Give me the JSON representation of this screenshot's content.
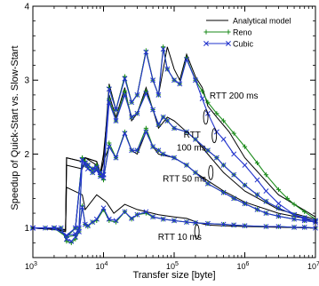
{
  "chart_data": {
    "type": "line",
    "xlabel": "Transfer size [byte]",
    "ylabel": "Speedup of Quick-Start vs. Slow-Start",
    "xscale": "log",
    "xlim": [
      1000,
      10000000
    ],
    "ylim": [
      0.6,
      4
    ],
    "grid": false,
    "legend_position": "top-right",
    "x_ticks": [
      {
        "value": 1000,
        "base": "10",
        "exp": "3"
      },
      {
        "value": 10000,
        "base": "10",
        "exp": "4"
      },
      {
        "value": 100000,
        "base": "10",
        "exp": "5"
      },
      {
        "value": 1000000,
        "base": "10",
        "exp": "6"
      },
      {
        "value": 10000000,
        "base": "10",
        "exp": "7"
      }
    ],
    "y_ticks": [
      {
        "value": 1,
        "label": "1"
      },
      {
        "value": 2,
        "label": "2"
      },
      {
        "value": 3,
        "label": "3"
      },
      {
        "value": 4,
        "label": "4"
      }
    ],
    "legend": [
      {
        "label": "Analytical model",
        "color": "#000000",
        "marker": "none"
      },
      {
        "label": "Reno",
        "color": "#1a8a1a",
        "marker": "plus"
      },
      {
        "label": "Cubic",
        "color": "#2233cc",
        "marker": "x"
      }
    ],
    "annotations": [
      {
        "text": "RTT 200 ms",
        "x": 700000,
        "y": 2.75,
        "pointer": [
          280000,
          2.5
        ]
      },
      {
        "text": "RTT",
        "x": 180000,
        "y": 2.22,
        "pointer": null
      },
      {
        "text": "100 ms",
        "x": 175000,
        "y": 2.05,
        "pointer": [
          370000,
          2.25
        ]
      },
      {
        "text": "RTT 50 ms",
        "x": 140000,
        "y": 1.63,
        "pointer": [
          330000,
          1.75
        ]
      },
      {
        "text": "RTT 10 ms",
        "x": 120000,
        "y": 0.84,
        "pointer": [
          210000,
          0.95
        ]
      }
    ],
    "series": [
      {
        "name": "RTT 10 ms — Analytical model",
        "color": "#000000",
        "marker": "none",
        "x": [
          1000,
          2000,
          2900,
          3000,
          5000,
          5500,
          8000,
          11000,
          14000,
          20000,
          30000,
          60000,
          100000,
          150000,
          220000,
          300000,
          500000,
          1000000,
          3000000,
          10000000
        ],
        "y": [
          1.0,
          0.98,
          0.95,
          1.55,
          1.45,
          1.25,
          1.45,
          1.35,
          1.2,
          1.32,
          1.25,
          1.18,
          1.15,
          1.13,
          1.07,
          1.04,
          1.03,
          1.02,
          1.01,
          1.0
        ]
      },
      {
        "name": "RTT 10 ms — Reno",
        "color": "#1a8a1a",
        "marker": "plus",
        "x": [
          1000,
          1500,
          2000,
          2500,
          3000,
          3500,
          4000,
          4500,
          5000,
          5500,
          6000,
          7000,
          8000,
          10000,
          12000,
          15000,
          20000,
          25000,
          30000,
          40000,
          50000,
          70000,
          100000,
          150000,
          200000,
          300000,
          500000,
          700000,
          1000000,
          2000000,
          3000000,
          5000000,
          7000000,
          10000000
        ],
        "y": [
          1.0,
          1.0,
          1.0,
          1.0,
          0.82,
          0.8,
          0.85,
          0.95,
          1.3,
          1.05,
          1.02,
          1.08,
          1.1,
          1.25,
          1.1,
          1.08,
          1.22,
          1.12,
          1.18,
          1.2,
          1.15,
          1.12,
          1.1,
          1.08,
          1.07,
          1.06,
          1.05,
          1.04,
          1.03,
          1.02,
          1.02,
          1.01,
          1.01,
          1.0
        ]
      },
      {
        "name": "RTT 10 ms — Cubic",
        "color": "#2233cc",
        "marker": "x",
        "x": [
          1000,
          1500,
          2000,
          2500,
          3000,
          3500,
          4000,
          4500,
          5000,
          5500,
          6000,
          7000,
          8000,
          10000,
          12000,
          15000,
          20000,
          25000,
          30000,
          40000,
          50000,
          70000,
          100000,
          150000,
          200000,
          300000,
          500000,
          700000,
          1000000,
          2000000,
          3000000,
          5000000,
          7000000,
          10000000
        ],
        "y": [
          1.0,
          1.0,
          1.0,
          1.0,
          0.85,
          0.82,
          0.88,
          0.95,
          1.28,
          1.05,
          1.03,
          1.08,
          1.12,
          1.27,
          1.12,
          1.1,
          1.22,
          1.13,
          1.18,
          1.22,
          1.15,
          1.12,
          1.1,
          1.08,
          1.07,
          1.06,
          1.05,
          1.04,
          1.03,
          1.02,
          1.02,
          1.01,
          1.01,
          1.0
        ]
      },
      {
        "name": "RTT 50 ms — Analytical model",
        "color": "#000000",
        "marker": "none",
        "x": [
          1000,
          2900,
          3000,
          5000,
          5500,
          8000,
          9000,
          10000,
          12000,
          15000,
          20000,
          25000,
          30000,
          40000,
          50000,
          60000,
          100000,
          150000,
          200000,
          500000,
          1000000,
          3000000,
          10000000
        ],
        "y": [
          1.0,
          0.98,
          1.85,
          1.8,
          1.95,
          1.85,
          1.7,
          1.9,
          2.1,
          1.95,
          2.3,
          2.05,
          2.0,
          2.3,
          2.1,
          2.0,
          1.95,
          1.85,
          1.75,
          1.5,
          1.35,
          1.2,
          1.1
        ]
      },
      {
        "name": "RTT 50 ms — Reno",
        "color": "#1a8a1a",
        "marker": "plus",
        "x": [
          1000,
          2000,
          3000,
          4000,
          4500,
          5000,
          5500,
          6000,
          7000,
          8000,
          9000,
          10000,
          12000,
          15000,
          20000,
          25000,
          30000,
          40000,
          50000,
          60000,
          70000,
          100000,
          150000,
          200000,
          300000,
          500000,
          700000,
          1000000,
          1500000,
          2000000,
          3000000,
          5000000,
          7000000,
          10000000
        ],
        "y": [
          1.0,
          1.0,
          0.88,
          0.9,
          1.0,
          1.95,
          1.85,
          1.82,
          1.75,
          1.8,
          1.7,
          1.65,
          2.15,
          1.95,
          2.3,
          2.05,
          2.05,
          2.35,
          2.1,
          2.05,
          2.0,
          1.95,
          1.85,
          1.75,
          1.6,
          1.48,
          1.4,
          1.33,
          1.25,
          1.2,
          1.16,
          1.12,
          1.1,
          1.08
        ]
      },
      {
        "name": "RTT 50 ms — Cubic",
        "color": "#2233cc",
        "marker": "x",
        "x": [
          1000,
          2000,
          3000,
          4000,
          4500,
          5000,
          5500,
          6000,
          7000,
          8000,
          9000,
          10000,
          12000,
          15000,
          20000,
          25000,
          30000,
          40000,
          50000,
          60000,
          70000,
          100000,
          150000,
          200000,
          300000,
          500000,
          700000,
          1000000,
          1500000,
          2000000,
          3000000,
          5000000,
          7000000,
          10000000
        ],
        "y": [
          1.0,
          1.0,
          0.9,
          0.92,
          1.0,
          1.92,
          1.85,
          1.8,
          1.75,
          1.78,
          1.7,
          1.68,
          2.1,
          1.95,
          2.28,
          2.05,
          2.05,
          2.3,
          2.1,
          2.05,
          2.0,
          1.95,
          1.85,
          1.75,
          1.6,
          1.48,
          1.4,
          1.33,
          1.25,
          1.2,
          1.16,
          1.12,
          1.1,
          1.08
        ]
      },
      {
        "name": "RTT 100 ms — Analytical model",
        "color": "#000000",
        "marker": "none",
        "x": [
          1000,
          2900,
          3000,
          5000,
          5500,
          8000,
          9000,
          10000,
          12000,
          15000,
          20000,
          25000,
          30000,
          40000,
          50000,
          60000,
          80000,
          100000,
          150000,
          200000,
          300000,
          500000,
          1000000,
          3000000,
          10000000
        ],
        "y": [
          1.0,
          0.97,
          1.95,
          1.9,
          1.95,
          1.9,
          1.75,
          2.0,
          2.8,
          2.5,
          2.9,
          2.45,
          2.55,
          2.9,
          2.6,
          2.35,
          2.5,
          2.45,
          2.3,
          2.2,
          2.0,
          1.75,
          1.5,
          1.25,
          1.12
        ]
      },
      {
        "name": "RTT 100 ms — Reno",
        "color": "#1a8a1a",
        "marker": "plus",
        "x": [
          1000,
          2000,
          3000,
          4000,
          5000,
          5500,
          6000,
          7000,
          8000,
          9000,
          10000,
          12000,
          15000,
          20000,
          25000,
          30000,
          40000,
          50000,
          60000,
          70000,
          80000,
          100000,
          150000,
          200000,
          300000,
          400000,
          500000,
          700000,
          1000000,
          1500000,
          2000000,
          3000000,
          5000000,
          7000000,
          10000000
        ],
        "y": [
          1.0,
          1.0,
          0.88,
          1.0,
          1.95,
          1.9,
          1.85,
          1.8,
          1.85,
          1.75,
          1.7,
          2.75,
          2.45,
          2.85,
          2.5,
          2.55,
          2.85,
          2.6,
          2.4,
          2.5,
          2.45,
          2.35,
          2.3,
          2.2,
          2.05,
          1.95,
          1.85,
          1.72,
          1.58,
          1.45,
          1.36,
          1.27,
          1.18,
          1.14,
          1.1
        ]
      },
      {
        "name": "RTT 100 ms — Cubic",
        "color": "#2233cc",
        "marker": "x",
        "x": [
          1000,
          2000,
          3000,
          4000,
          5000,
          5500,
          6000,
          7000,
          8000,
          9000,
          10000,
          12000,
          15000,
          20000,
          25000,
          30000,
          40000,
          50000,
          60000,
          70000,
          80000,
          100000,
          150000,
          200000,
          300000,
          400000,
          500000,
          700000,
          1000000,
          1500000,
          2000000,
          3000000,
          5000000,
          7000000,
          10000000
        ],
        "y": [
          1.0,
          1.0,
          0.9,
          1.0,
          1.92,
          1.88,
          1.85,
          1.8,
          1.82,
          1.75,
          1.72,
          2.7,
          2.45,
          2.8,
          2.5,
          2.55,
          2.82,
          2.6,
          2.4,
          2.5,
          2.45,
          2.35,
          2.3,
          2.2,
          2.05,
          1.95,
          1.85,
          1.72,
          1.58,
          1.45,
          1.36,
          1.27,
          1.18,
          1.14,
          1.1
        ]
      },
      {
        "name": "RTT 200 ms — Analytical model",
        "color": "#000000",
        "marker": "none",
        "x": [
          1000,
          2900,
          3000,
          5000,
          5500,
          8000,
          9000,
          10000,
          12000,
          15000,
          20000,
          25000,
          30000,
          40000,
          50000,
          60000,
          80000,
          100000,
          120000,
          150000,
          200000,
          250000,
          280000,
          300000,
          400000,
          600000,
          1000000,
          3000000,
          10000000
        ],
        "y": [
          1.0,
          0.97,
          1.95,
          1.9,
          1.95,
          1.9,
          1.75,
          1.9,
          2.95,
          2.6,
          3.05,
          2.7,
          2.8,
          3.4,
          3.0,
          2.8,
          3.45,
          3.15,
          3.0,
          3.35,
          3.05,
          2.9,
          2.75,
          2.65,
          2.5,
          2.3,
          1.95,
          1.45,
          1.15
        ]
      },
      {
        "name": "RTT 200 ms — Reno",
        "color": "#1a8a1a",
        "marker": "plus",
        "x": [
          1000,
          2000,
          3000,
          4000,
          5000,
          5500,
          6000,
          7000,
          8000,
          9000,
          10000,
          12000,
          15000,
          20000,
          25000,
          30000,
          40000,
          50000,
          60000,
          70000,
          80000,
          100000,
          120000,
          150000,
          200000,
          250000,
          300000,
          400000,
          500000,
          700000,
          1000000,
          1500000,
          2000000,
          3000000,
          4000000,
          5000000,
          7000000,
          10000000
        ],
        "y": [
          1.0,
          1.0,
          0.88,
          1.0,
          1.95,
          1.9,
          1.85,
          1.8,
          1.85,
          1.75,
          1.7,
          2.9,
          2.6,
          3.05,
          2.7,
          2.8,
          3.4,
          3.0,
          2.8,
          3.45,
          3.15,
          3.0,
          2.95,
          3.3,
          3.0,
          2.85,
          2.7,
          2.55,
          2.45,
          2.28,
          2.1,
          1.88,
          1.72,
          1.52,
          1.4,
          1.32,
          1.22,
          1.12
        ]
      },
      {
        "name": "RTT 200 ms — Cubic",
        "color": "#2233cc",
        "marker": "x",
        "x": [
          1000,
          2000,
          3000,
          4000,
          5000,
          5500,
          6000,
          7000,
          8000,
          9000,
          10000,
          12000,
          15000,
          20000,
          25000,
          30000,
          40000,
          50000,
          60000,
          70000,
          80000,
          100000,
          120000,
          150000,
          200000,
          250000,
          300000,
          400000,
          500000,
          700000,
          1000000,
          1500000,
          2000000,
          3000000,
          5000000,
          7000000,
          10000000
        ],
        "y": [
          1.0,
          1.0,
          0.9,
          1.0,
          1.92,
          1.88,
          1.85,
          1.8,
          1.82,
          1.75,
          1.72,
          2.88,
          2.6,
          3.02,
          2.7,
          2.8,
          3.38,
          3.0,
          2.8,
          3.42,
          3.15,
          3.0,
          2.95,
          3.28,
          3.0,
          2.75,
          2.55,
          2.3,
          2.2,
          2.0,
          1.85,
          1.65,
          1.5,
          1.33,
          1.18,
          1.12,
          1.08
        ]
      }
    ]
  }
}
